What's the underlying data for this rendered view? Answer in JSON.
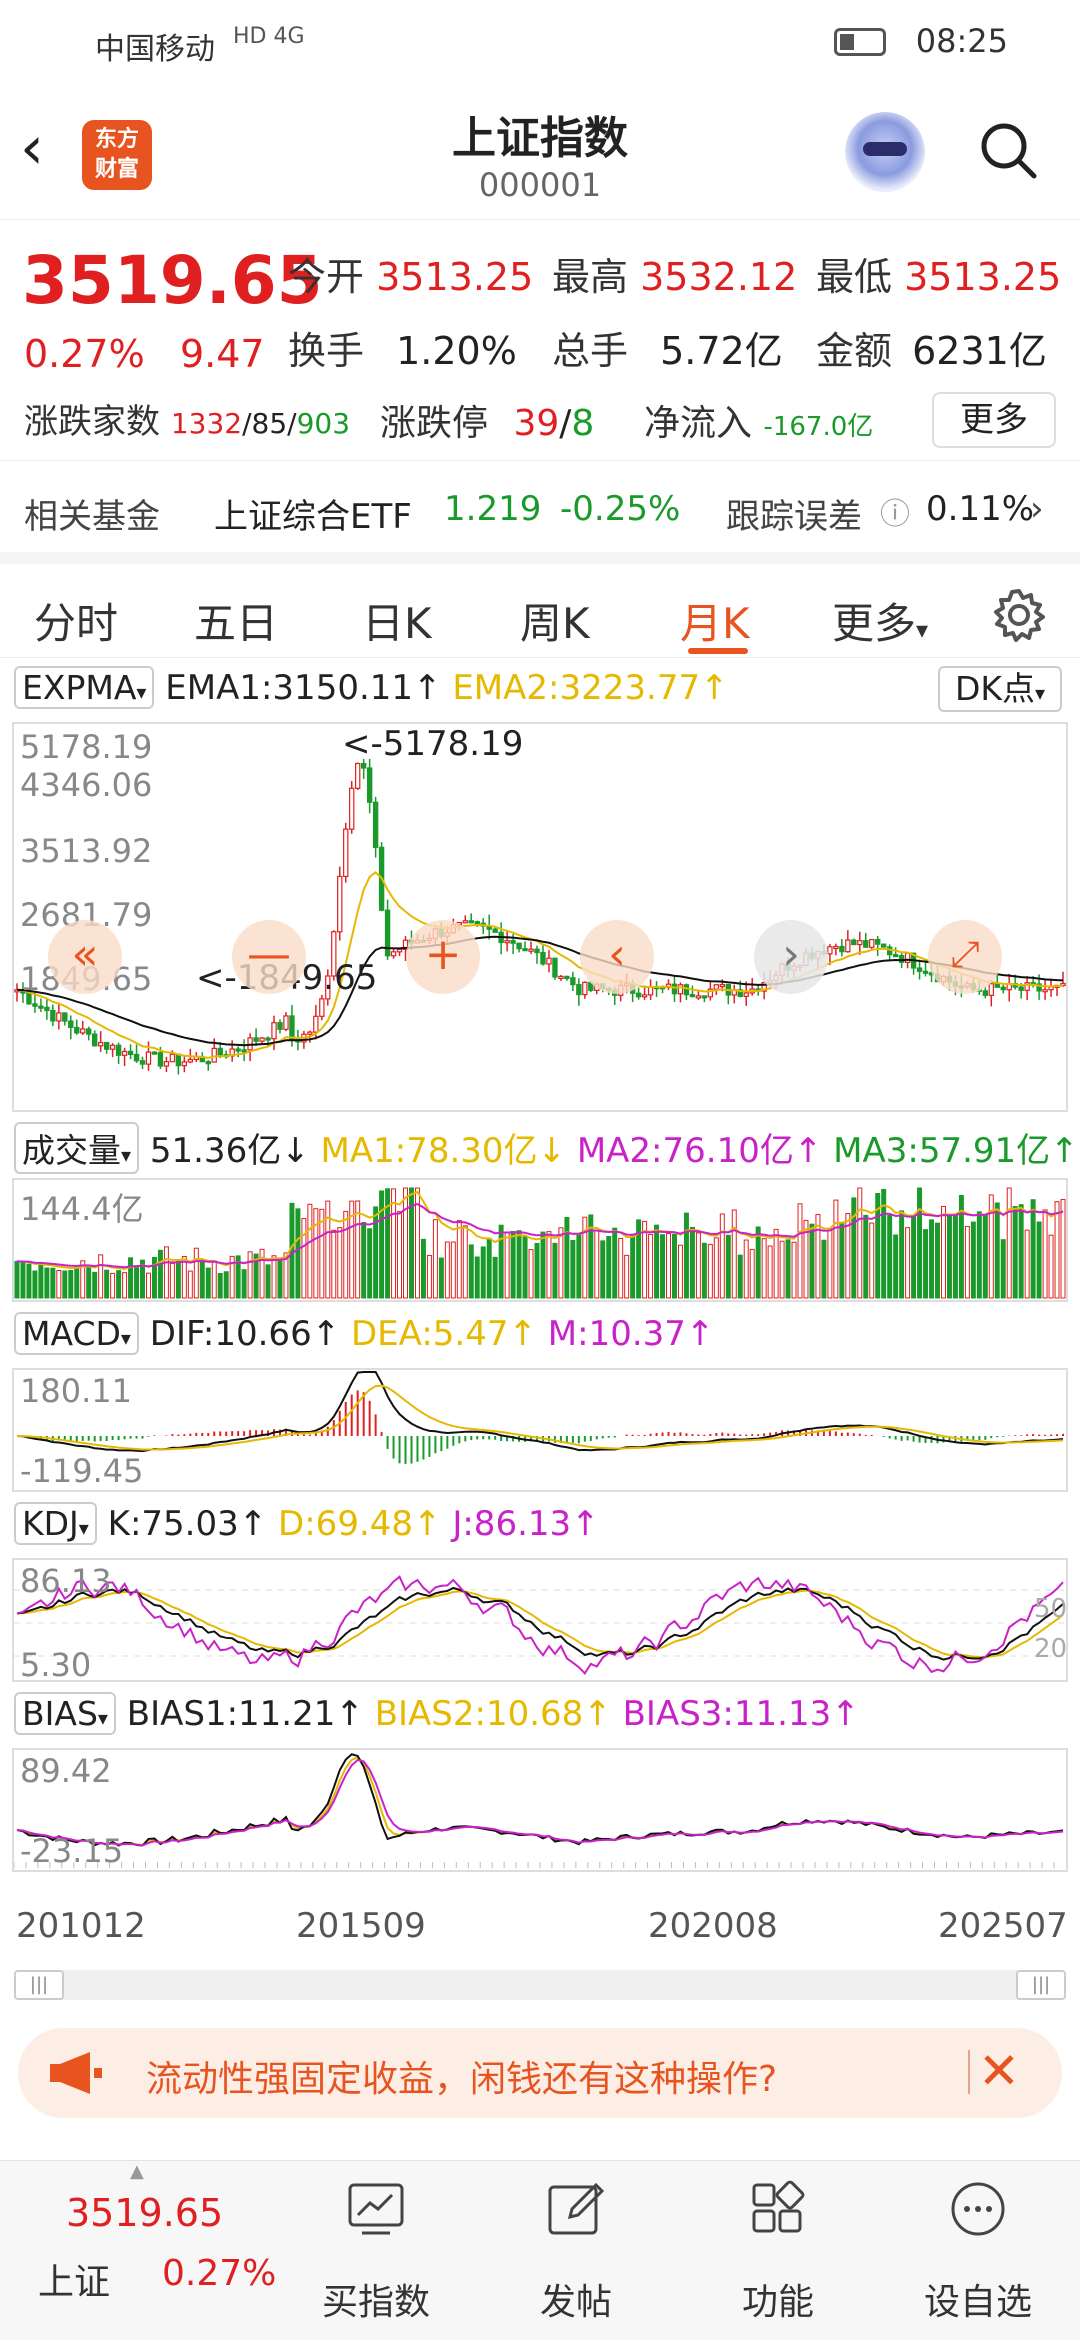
{
  "status": {
    "carrier": "中国移动",
    "net": "HD 4G",
    "time": "08:25"
  },
  "header": {
    "title": "上证指数",
    "code": "000001",
    "logo": "东方\n财富"
  },
  "quote": {
    "price": "3519.65",
    "pct": "0.27%",
    "chg": "9.47",
    "open_label": "今开",
    "open": "3513.25",
    "high_label": "最高",
    "high": "3532.12",
    "low_label": "最低",
    "low": "3513.25",
    "turnover_label": "换手",
    "turnover": "1.20%",
    "volume_label": "总手",
    "volume": "5.72亿",
    "amount_label": "金额",
    "amount": "6231亿",
    "breadth_label": "涨跌家数",
    "up": "1332",
    "flat": "85",
    "down": "903",
    "limit_label": "涨跌停",
    "limit_up": "39",
    "limit_down": "8",
    "netflow_label": "净流入",
    "netflow": "-167.0亿",
    "more_label": "更多"
  },
  "fund": {
    "label": "相关基金",
    "name": "上证综合ETF",
    "price": "1.219",
    "pct": "-0.25%",
    "err_label": "跟踪误差",
    "err": "0.11%"
  },
  "tabs": [
    "分时",
    "五日",
    "日K",
    "周K",
    "月K",
    "更多"
  ],
  "active_tab": "月K",
  "indicators": {
    "expma": {
      "name": "EXPMA",
      "ema1": "EMA1:3150.11↑",
      "ema2": "EMA2:3223.77↑",
      "dk": "DK点"
    },
    "vol": {
      "name": "成交量",
      "v": "51.36亿↓",
      "ma1": "MA1:78.30亿↓",
      "ma2": "MA2:76.10亿↑",
      "ma3": "MA3:57.91亿↑"
    },
    "macd": {
      "name": "MACD",
      "dif": "DIF:10.66↑",
      "dea": "DEA:5.47↑",
      "m": "M:10.37↑"
    },
    "kdj": {
      "name": "KDJ",
      "k": "K:75.03↑",
      "d": "D:69.48↑",
      "j": "J:86.13↑"
    },
    "bias": {
      "name": "BIAS",
      "b1": "BIAS1:11.21↑",
      "b2": "BIAS2:10.68↑",
      "b3": "BIAS3:11.13↑"
    }
  },
  "axis": {
    "price": [
      "5178.19",
      "4346.06",
      "3513.92",
      "2681.79",
      "1849.65"
    ],
    "max_note": "<-5178.19",
    "min_note": "<-1849.65",
    "vol": "144.4亿",
    "macd_top": "180.11",
    "macd_bottom": "-119.45",
    "kdj_top": "86.13",
    "kdj_bottom": "5.30",
    "kdj_50": "50",
    "kdj_20": "20",
    "bias_top": "89.42",
    "bias_bottom": "-23.15",
    "dates": [
      "201012",
      "201509",
      "202008",
      "202507"
    ]
  },
  "ad": {
    "text": "流动性强固定收益，闲钱还有这种操作?"
  },
  "bottom": {
    "price": "3519.65",
    "name": "上证",
    "pct": "0.27%",
    "items": [
      "买指数",
      "发帖",
      "功能",
      "设自选"
    ]
  },
  "colors": {
    "up": "#e02020",
    "down": "#1a9a2a",
    "accent": "#e8541f",
    "yellow": "#e6b800",
    "magenta": "#c822c8"
  }
}
